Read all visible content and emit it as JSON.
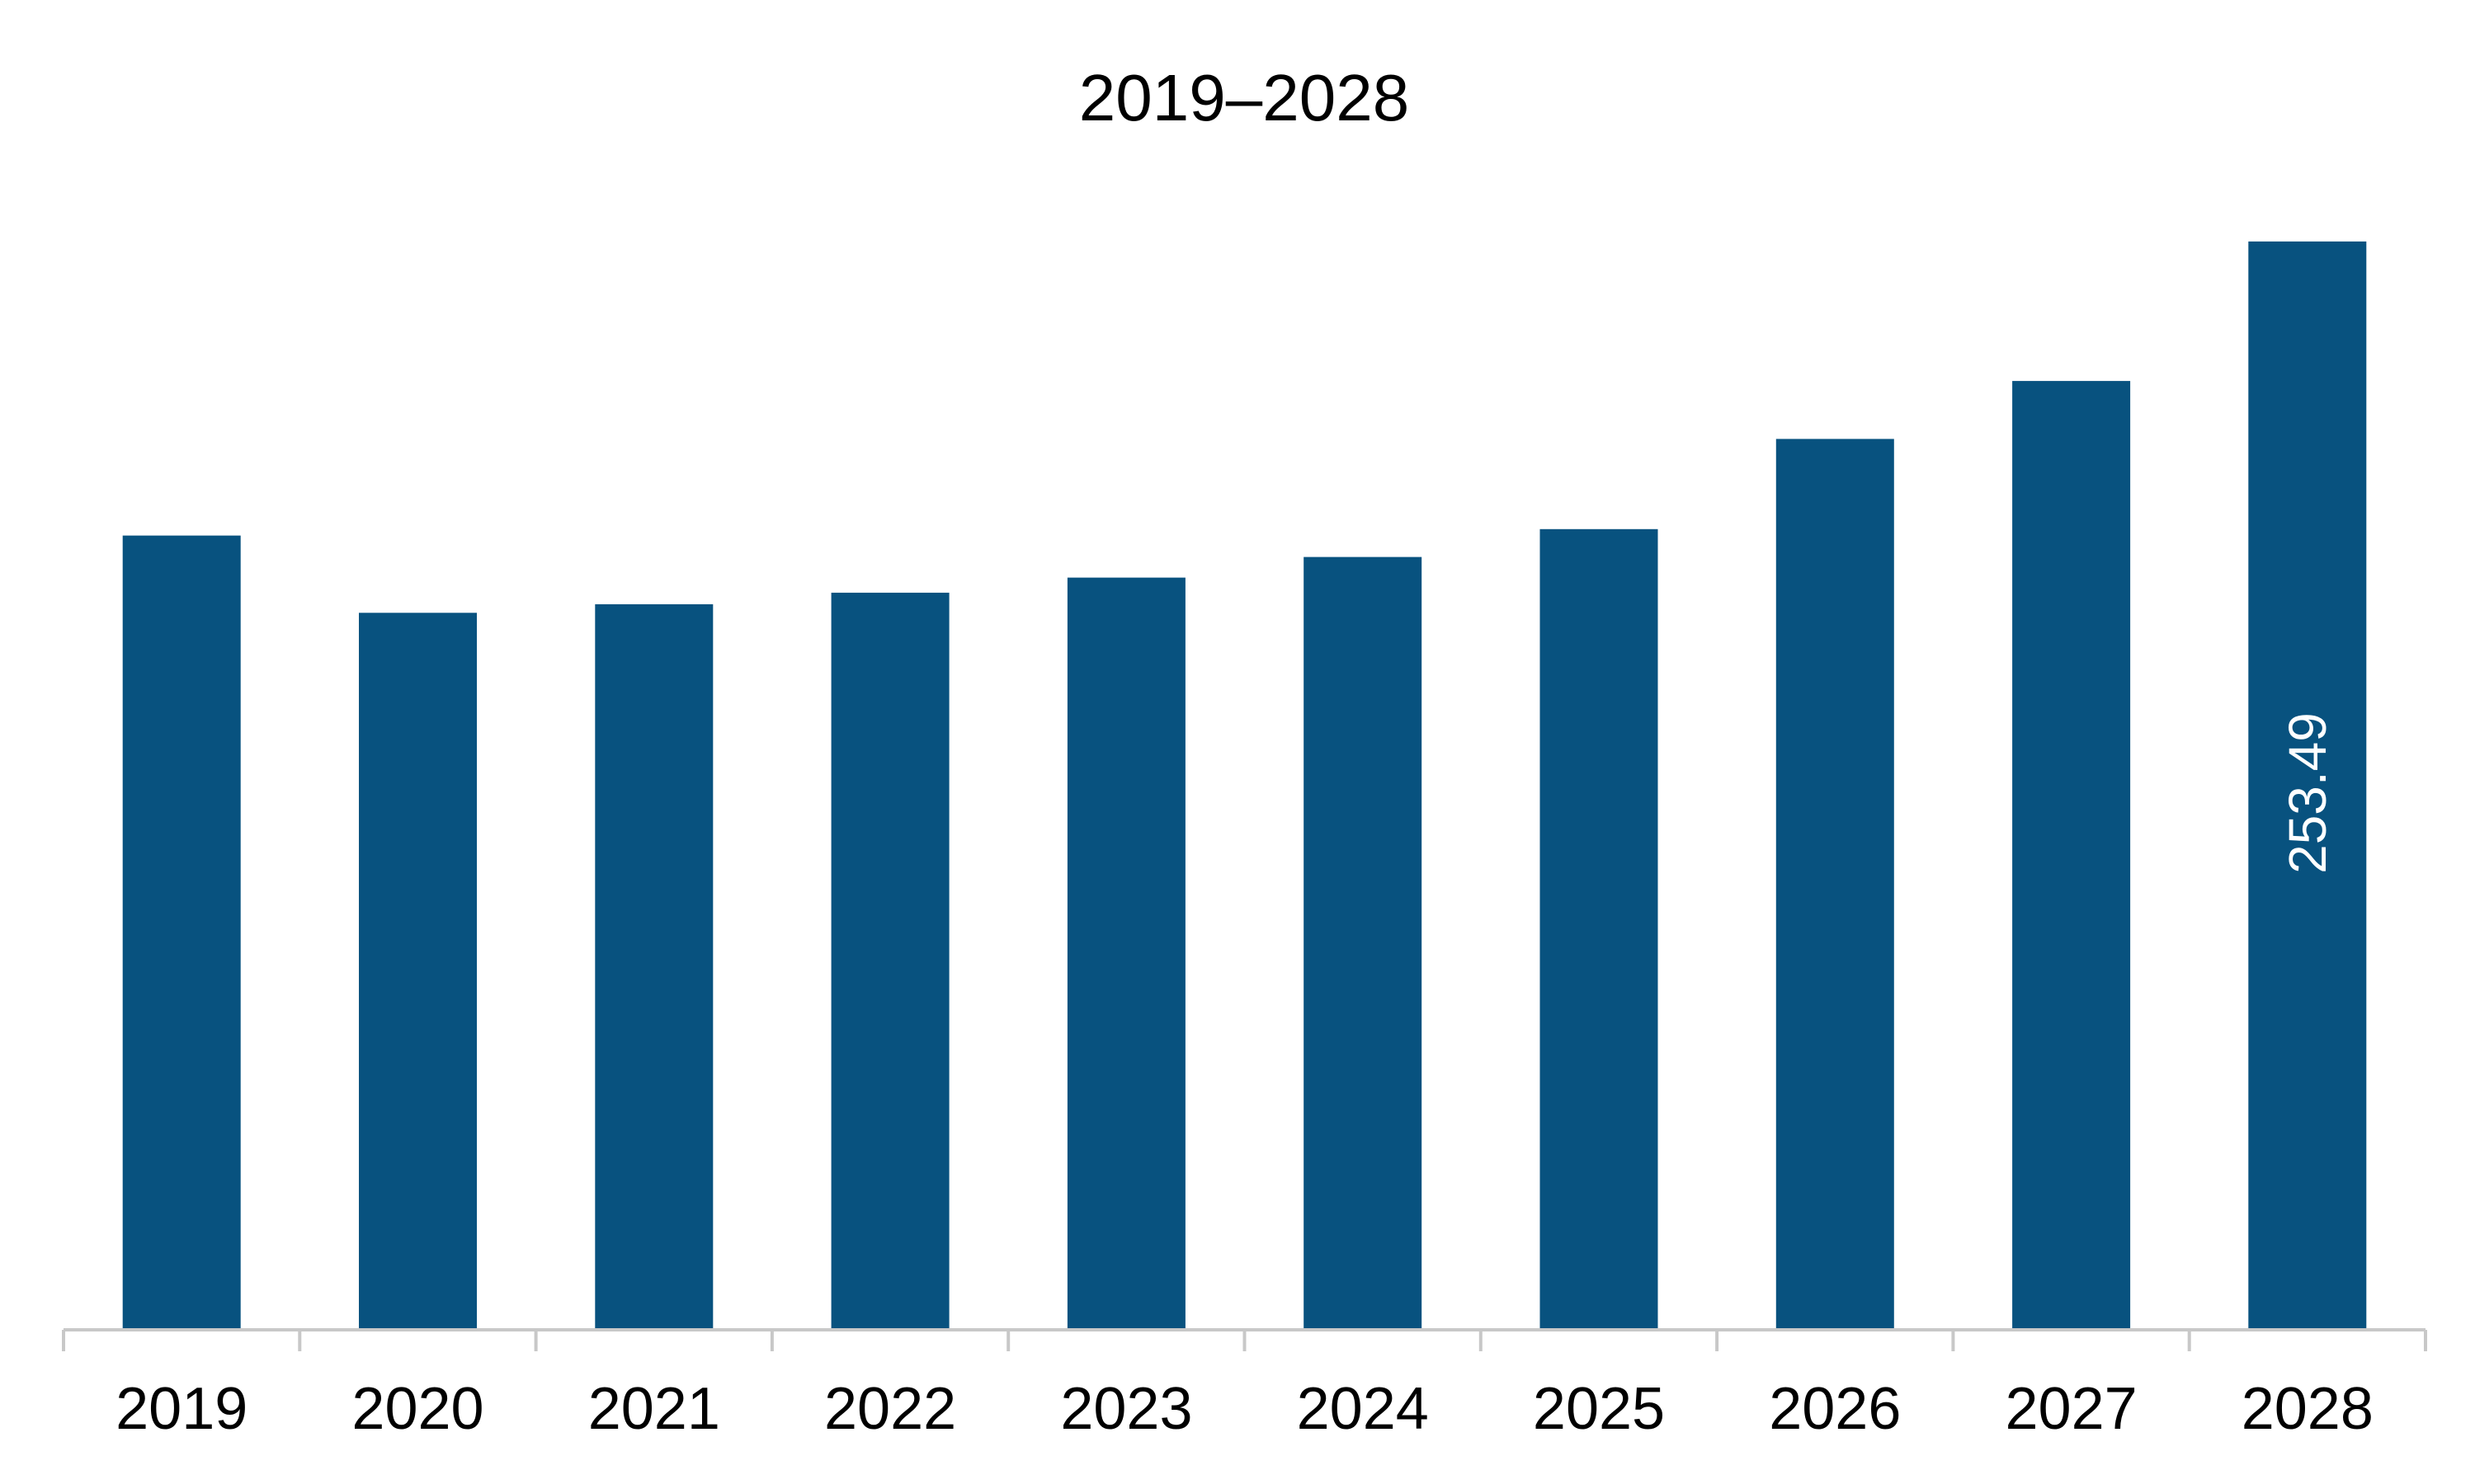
{
  "chart_data": {
    "type": "bar",
    "title": "2019–2028",
    "xlabel": "",
    "ylabel": "",
    "categories": [
      "2019",
      "2020",
      "2021",
      "2022",
      "2023",
      "2024",
      "2025",
      "2026",
      "2027",
      "2028"
    ],
    "values": [
      185.0,
      167.0,
      169.0,
      171.7,
      175.2,
      180.0,
      186.5,
      207.5,
      221.0,
      253.49
    ],
    "data_labels": [
      {
        "category": "2028",
        "text": "253.49"
      }
    ],
    "ylim": [
      0,
      265
    ],
    "grid": false,
    "legend": "none",
    "bar_color": "#08527F",
    "axis_color": "#c8c8c8"
  }
}
